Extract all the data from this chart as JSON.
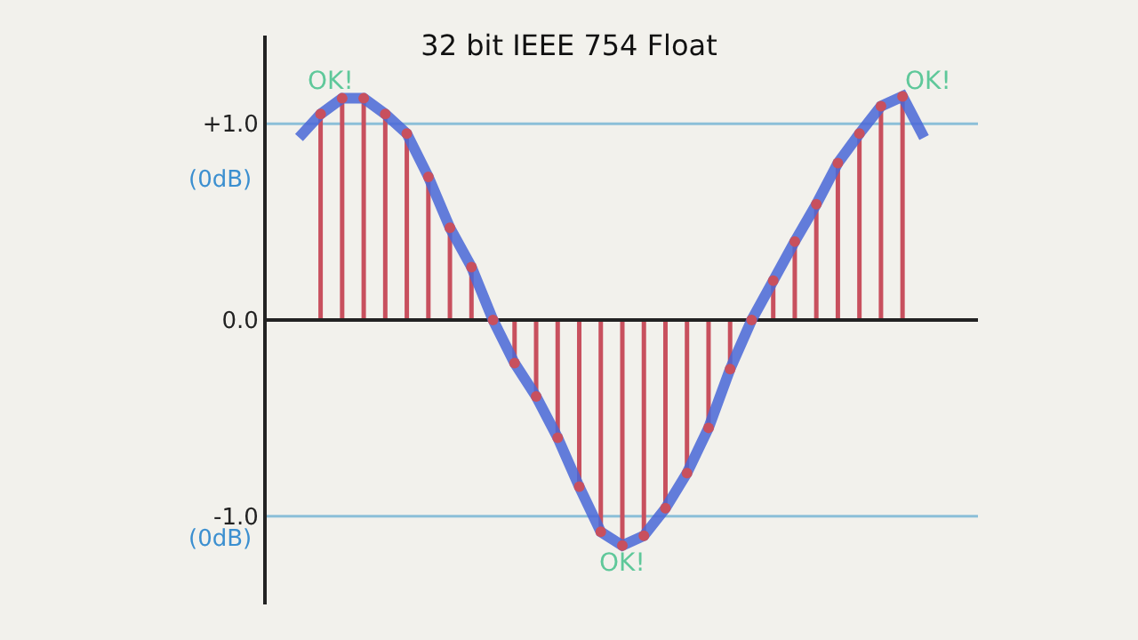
{
  "chart_data": {
    "type": "lollipop",
    "title": "32 bit IEEE 754 Float",
    "categories": [
      null,
      null,
      null,
      null,
      null,
      null,
      null,
      null,
      null,
      null,
      null,
      null,
      null,
      null,
      null,
      null,
      null,
      null,
      null,
      null,
      null,
      null,
      null,
      null,
      null,
      null,
      null,
      null,
      null,
      null
    ],
    "series": [
      {
        "color": "#c8505e",
        "values": [
          null,
          1.05,
          1.13,
          1.13,
          1.05,
          0.95,
          0.73,
          0.47,
          0.27,
          0.0,
          -0.22,
          -0.39,
          -0.6,
          -0.85,
          -1.08,
          -1.15,
          -1.1,
          -0.96,
          -0.78,
          -0.55,
          -0.25,
          0.0,
          0.2,
          0.4,
          0.59,
          0.8,
          0.95,
          1.09,
          1.14,
          null
        ]
      },
      {
        "type": "line",
        "marker": "none",
        "color": "#4a68d8",
        "values": [
          0.93,
          1.05,
          1.13,
          1.13,
          1.05,
          0.95,
          0.73,
          0.47,
          0.27,
          0.0,
          -0.22,
          -0.39,
          -0.6,
          -0.85,
          -1.08,
          -1.15,
          -1.1,
          -0.96,
          -0.78,
          -0.55,
          -0.25,
          0.0,
          0.2,
          0.4,
          0.59,
          0.8,
          0.95,
          1.09,
          1.14,
          0.93
        ]
      }
    ],
    "ylim": [
      -1.45,
      1.45
    ],
    "yticks": [
      {
        "value": 1,
        "label": "+1.0"
      },
      {
        "value": 0,
        "label": "0.0"
      },
      {
        "value": -1,
        "label": "-1.0"
      }
    ],
    "tick_labels": "y",
    "grid": false,
    "marker": "circle",
    "ref_lines": [
      {
        "axis": "y",
        "value": 1,
        "color": "#8cbfd8"
      },
      {
        "axis": "y",
        "value": -1,
        "color": "#8cbfd8"
      }
    ],
    "annotations": [
      "OK!",
      "OK!",
      "OK!",
      "(0dB)",
      "(0dB)"
    ]
  }
}
